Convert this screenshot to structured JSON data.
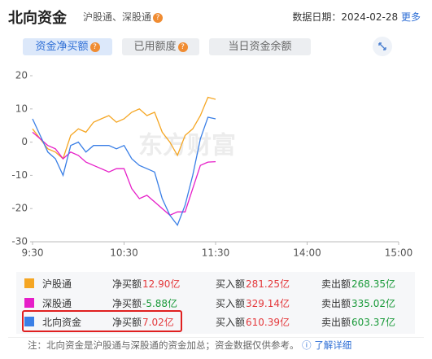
{
  "header": {
    "title": "北向资金",
    "subtitle": "沪股通、深股通",
    "date_label": "数据日期：",
    "date": "2024-02-28",
    "more": "更多"
  },
  "tabs": [
    "资金净买额",
    "已用额度",
    "当日资金余额"
  ],
  "chart_data": {
    "type": "line",
    "watermark": "东方财富",
    "xlim": [
      0,
      240
    ],
    "xticks": [
      {
        "value": 0,
        "label": "9:30"
      },
      {
        "value": 60,
        "label": "10:30"
      },
      {
        "value": 120,
        "label": "11:30"
      },
      {
        "value": 180,
        "label": "14:00"
      },
      {
        "value": 240,
        "label": "15:00"
      }
    ],
    "ylim": [
      -30,
      20
    ],
    "yticks": [
      20,
      10,
      0,
      -10,
      -20,
      -30
    ],
    "x": [
      0,
      5,
      10,
      15,
      20,
      25,
      30,
      35,
      40,
      45,
      50,
      55,
      60,
      65,
      70,
      75,
      80,
      85,
      90,
      95,
      100,
      105,
      110,
      115,
      120
    ],
    "series": [
      {
        "name": "沪股通",
        "color": "#f5a623",
        "values": [
          4,
          1,
          -2,
          -3,
          -5,
          2,
          4,
          3,
          6,
          7,
          8,
          6,
          7,
          9,
          10,
          8,
          9,
          3,
          0,
          -4,
          2,
          4,
          8,
          13.5,
          12.9
        ]
      },
      {
        "name": "深股通",
        "color": "#e61ec8",
        "values": [
          3,
          1,
          -1,
          -2,
          -5,
          -3,
          -4,
          -6,
          -7,
          -8,
          -9,
          -8,
          -8,
          -14,
          -17,
          -16,
          -18,
          -20,
          -22,
          -21,
          -21,
          -14,
          -7,
          -6,
          -5.88
        ]
      },
      {
        "name": "北向资金",
        "color": "#3a7fe6",
        "values": [
          7,
          2,
          -3,
          -5,
          -10,
          -1,
          0,
          -3,
          -1,
          -1,
          -1,
          -2,
          -1,
          -5,
          -7,
          -8,
          -9,
          -17,
          -22,
          -25,
          -19,
          -10,
          1,
          7.5,
          7.02
        ]
      }
    ]
  },
  "summary": [
    {
      "net_label": "净买额",
      "net": "12.90亿",
      "buy_label": "买入额",
      "buy": "281.25亿",
      "sell_label": "卖出额",
      "sell": "268.35亿"
    },
    {
      "net_label": "净买额",
      "net": "-5.88亿",
      "buy_label": "买入额",
      "buy": "329.14亿",
      "sell_label": "卖出额",
      "sell": "335.02亿"
    },
    {
      "net_label": "净买额",
      "net": "7.02亿",
      "buy_label": "买入额",
      "buy": "610.39亿",
      "sell_label": "卖出额",
      "sell": "603.37亿"
    }
  ],
  "note": "注：北向资金是沪股通与深股通的资金加总；资金数据仅供参考。",
  "note_link": "了解详细"
}
